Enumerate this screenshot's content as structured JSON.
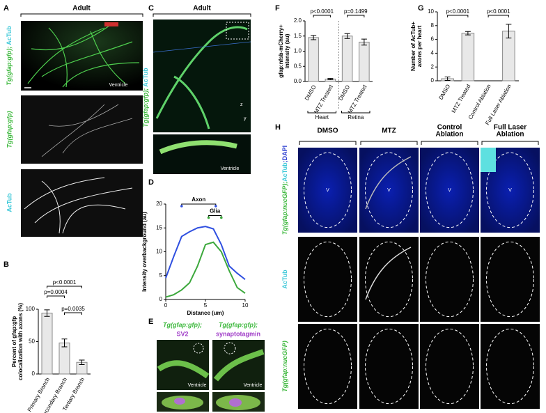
{
  "panels": {
    "A": {
      "letter": "A",
      "title": "Adult",
      "labels": [
        [
          "Tg(gfap:gfp);",
          "AcTub"
        ],
        [
          "Tg(gfap:gfp)"
        ],
        [
          "AcTub"
        ]
      ],
      "ventricle": "Ventricle"
    },
    "B": {
      "letter": "B"
    },
    "C": {
      "letter": "C",
      "title": "Adult",
      "label": [
        "Tg(gfap:gfp);",
        "AcTub"
      ],
      "ventricle": "Ventricle",
      "axis_labels": [
        "z",
        "y"
      ]
    },
    "D": {
      "letter": "D"
    },
    "E": {
      "letter": "E",
      "columns": [
        [
          "Tg(gfap:gfp);",
          "SV2"
        ],
        [
          "Tg(gfap:gfp);",
          "synaptotagmin"
        ]
      ],
      "ventricle": "Ventricle"
    },
    "F": {
      "letter": "F"
    },
    "G": {
      "letter": "G"
    },
    "H": {
      "letter": "H",
      "columns": [
        [
          "DMSO"
        ],
        [
          "MTZ"
        ],
        [
          "Control",
          "Ablation"
        ],
        [
          "Full Laser",
          "Ablation"
        ]
      ],
      "rows": [
        [
          "Tg(gfap:nucGFP);",
          "AcTub",
          ";DAPI"
        ],
        [
          "AcTub"
        ],
        [
          "Tg(gfap:nucGFP)"
        ]
      ],
      "ventricle_mark": "V"
    }
  },
  "chart_data": [
    {
      "type": "bar",
      "categories": [
        "Primary Branch",
        "Secondary Branch",
        "Tertiary Branch"
      ],
      "values": [
        94,
        48,
        18
      ],
      "errors": [
        5,
        6,
        3.5
      ],
      "color": "#e8e8e8",
      "ylabel": [
        "Percent of gfap:gfp",
        "colocalization with axons (%)"
      ],
      "ylim": [
        0,
        100
      ],
      "yticks": [
        0,
        50,
        100
      ],
      "annotations": [
        "p=0.0004",
        "p<0.0001",
        "p=0.0035"
      ]
    },
    {
      "type": "line",
      "x": [
        0,
        1,
        2,
        3,
        4,
        5,
        6,
        7,
        8,
        9,
        10
      ],
      "series": [
        {
          "name": "Axon",
          "color": "#2f4fe0",
          "values": [
            4.5,
            9,
            13.2,
            14.2,
            15,
            15.3,
            14.8,
            11.5,
            7,
            5.5,
            4.2
          ]
        },
        {
          "name": "Glia",
          "color": "#3ca83c",
          "values": [
            0.5,
            1,
            2,
            3.5,
            7,
            11.5,
            12,
            10,
            6,
            2.5,
            1.3
          ]
        }
      ],
      "xlabel": "Distance (um)",
      "ylabel": [
        "Intensity overbackground (au)"
      ],
      "xlim": [
        0,
        10
      ],
      "xticks": [
        0,
        5,
        10
      ],
      "ylim": [
        0,
        20
      ],
      "yticks": [
        0,
        5,
        10,
        15,
        20
      ]
    },
    {
      "type": "bar",
      "categories": [
        "DMSO",
        "MTZ Treated",
        "DMSO",
        "MTZ Treated"
      ],
      "values": [
        1.45,
        0.08,
        1.5,
        1.3
      ],
      "errors": [
        0.07,
        0.02,
        0.08,
        0.1
      ],
      "color": "#e8e8e8",
      "group_labels": [
        "Heart",
        "Retina"
      ],
      "ylabel": [
        "gfap:nfsb-mCherry+",
        "intensity (au)"
      ],
      "ylim": [
        0,
        2
      ],
      "yticks": [
        {
          "value": 0,
          "label": "0.0"
        },
        {
          "value": 0.5,
          "label": "0.5"
        },
        {
          "value": 1,
          "label": "1.0"
        },
        {
          "value": 1.5,
          "label": "1.5"
        },
        {
          "value": 2,
          "label": "2.0"
        }
      ],
      "annotations": [
        "p<0.0001",
        "p=0.1499"
      ]
    },
    {
      "type": "bar",
      "categories": [
        "DMSO",
        "MTZ Treated",
        "Control Ablation",
        "Full Laser Ablation"
      ],
      "values": [
        0.3,
        6.9,
        0,
        7.2
      ],
      "errors": [
        0.25,
        0.25,
        0,
        1
      ],
      "color": "#e8e8e8",
      "ylabel": [
        "Number of AcTub+",
        "axons per heart"
      ],
      "ylim": [
        0,
        10
      ],
      "yticks": [
        0,
        2,
        4,
        6,
        8,
        10
      ],
      "annotations": [
        "p<0.0001",
        "p<0.0001"
      ]
    }
  ]
}
